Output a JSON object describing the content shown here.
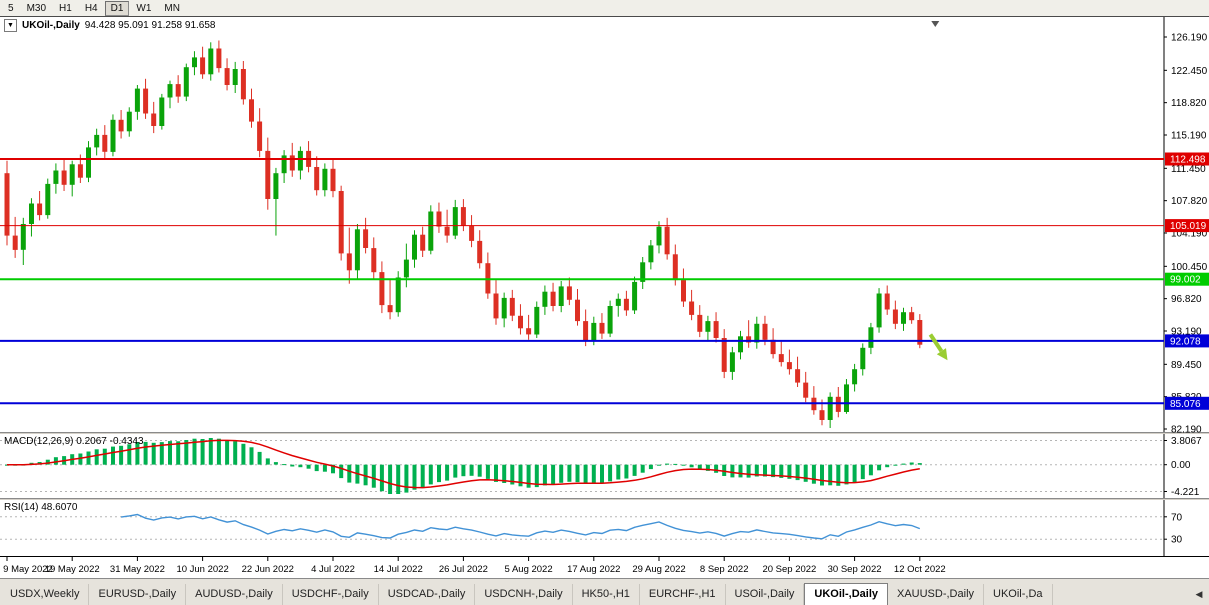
{
  "toolbar": {
    "periods": [
      "5",
      "M30",
      "H1",
      "H4",
      "D1",
      "W1",
      "MN"
    ],
    "active_period": "D1"
  },
  "chart": {
    "title": "UKOil-,Daily",
    "ohlc_text": "94.428 95.091 91.258 91.658",
    "dropdown_icon": "▼"
  },
  "chart_data": {
    "type": "candlestick",
    "symbol": "UKOil-",
    "timeframe": "Daily",
    "open": "94.428",
    "high": "95.091",
    "low": "91.258",
    "close": "91.658",
    "colors": {
      "up": "#0aa30a",
      "down": "#dd2f23"
    },
    "y_axis": {
      "max": 126.19,
      "min": 82.19,
      "labels": [
        "126.190",
        "122.450",
        "118.820",
        "115.190",
        "111.450",
        "107.820",
        "104.190",
        "100.450",
        "96.820",
        "93.190",
        "89.450",
        "85.820",
        "82.190"
      ]
    },
    "x_labels": [
      {
        "index": 0,
        "label": "9 May 2022"
      },
      {
        "index": 8,
        "label": "19 May 2022"
      },
      {
        "index": 16,
        "label": "31 May 2022"
      },
      {
        "index": 24,
        "label": "10 Jun 2022"
      },
      {
        "index": 32,
        "label": "22 Jun 2022"
      },
      {
        "index": 40,
        "label": "4 Jul 2022"
      },
      {
        "index": 48,
        "label": "14 Jul 2022"
      },
      {
        "index": 56,
        "label": "26 Jul 2022"
      },
      {
        "index": 64,
        "label": "5 Aug 2022"
      },
      {
        "index": 72,
        "label": "17 Aug 2022"
      },
      {
        "index": 80,
        "label": "29 Aug 2022"
      },
      {
        "index": 88,
        "label": "8 Sep 2022"
      },
      {
        "index": 96,
        "label": "20 Sep 2022"
      },
      {
        "index": 104,
        "label": "30 Sep 2022"
      },
      {
        "index": 112,
        "label": "12 Oct 2022"
      }
    ],
    "hlines": [
      {
        "price": 112.498,
        "label": "112.498",
        "color": "#df0000",
        "width": 2
      },
      {
        "price": 105.019,
        "label": "105.019",
        "color": "#df0000",
        "width": 1
      },
      {
        "price": 99.002,
        "label": "99.002",
        "color": "#00cc00",
        "width": 2
      },
      {
        "price": 92.078,
        "label": "92.078",
        "color": "#0000d8",
        "width": 2
      },
      {
        "price": 85.076,
        "label": "85.076",
        "color": "#0000d8",
        "width": 2
      }
    ],
    "shift_marker_index": 113.9,
    "arrow": {
      "from": {
        "index": 113.3,
        "price": 92.8
      },
      "to": {
        "index": 115.4,
        "price": 89.9
      },
      "color": "#9acd32"
    },
    "candles": [
      [
        110.9,
        112.3,
        102.8,
        103.9
      ],
      [
        103.9,
        106.0,
        101.4,
        102.3
      ],
      [
        102.3,
        105.9,
        100.6,
        105.2
      ],
      [
        105.2,
        108.1,
        103.8,
        107.5
      ],
      [
        107.5,
        108.9,
        105.6,
        106.2
      ],
      [
        106.2,
        110.3,
        105.8,
        109.7
      ],
      [
        109.7,
        112.0,
        108.6,
        111.2
      ],
      [
        111.2,
        112.4,
        108.9,
        109.6
      ],
      [
        109.6,
        112.3,
        108.3,
        111.9
      ],
      [
        111.9,
        113.0,
        109.8,
        110.4
      ],
      [
        110.4,
        114.5,
        109.9,
        113.8
      ],
      [
        113.8,
        115.9,
        112.9,
        115.2
      ],
      [
        115.2,
        116.3,
        112.5,
        113.3
      ],
      [
        113.3,
        117.5,
        112.8,
        116.9
      ],
      [
        116.9,
        118.0,
        114.8,
        115.6
      ],
      [
        115.6,
        118.3,
        115.0,
        117.8
      ],
      [
        117.8,
        120.8,
        116.9,
        120.4
      ],
      [
        120.4,
        121.5,
        117.0,
        117.6
      ],
      [
        117.6,
        118.9,
        115.4,
        116.2
      ],
      [
        116.2,
        119.8,
        115.8,
        119.4
      ],
      [
        119.4,
        121.3,
        118.2,
        120.9
      ],
      [
        120.9,
        121.9,
        118.8,
        119.5
      ],
      [
        119.5,
        123.2,
        119.0,
        122.8
      ],
      [
        122.8,
        124.6,
        121.9,
        123.9
      ],
      [
        123.9,
        125.1,
        121.5,
        122.0
      ],
      [
        122.0,
        125.6,
        121.3,
        124.9
      ],
      [
        124.9,
        125.8,
        122.2,
        122.7
      ],
      [
        122.7,
        123.8,
        120.2,
        120.8
      ],
      [
        120.8,
        123.4,
        119.9,
        122.6
      ],
      [
        122.6,
        123.5,
        118.6,
        119.2
      ],
      [
        119.2,
        120.4,
        116.0,
        116.7
      ],
      [
        116.7,
        118.2,
        112.7,
        113.4
      ],
      [
        113.4,
        114.9,
        106.8,
        108.0
      ],
      [
        108.0,
        111.5,
        103.9,
        110.9
      ],
      [
        110.9,
        113.5,
        109.8,
        112.9
      ],
      [
        112.9,
        114.3,
        110.5,
        111.2
      ],
      [
        111.2,
        113.9,
        110.2,
        113.4
      ],
      [
        113.4,
        114.5,
        111.0,
        111.6
      ],
      [
        111.6,
        112.8,
        108.4,
        109.0
      ],
      [
        109.0,
        112.0,
        108.3,
        111.4
      ],
      [
        111.4,
        112.6,
        108.2,
        108.9
      ],
      [
        108.9,
        109.5,
        101.1,
        101.9
      ],
      [
        101.9,
        104.8,
        98.5,
        100.0
      ],
      [
        100.0,
        105.2,
        99.0,
        104.6
      ],
      [
        104.6,
        105.9,
        101.9,
        102.5
      ],
      [
        102.5,
        103.7,
        99.0,
        99.8
      ],
      [
        99.8,
        101.0,
        95.2,
        96.1
      ],
      [
        96.1,
        99.0,
        94.5,
        95.3
      ],
      [
        95.3,
        99.9,
        94.8,
        99.2
      ],
      [
        99.2,
        103.0,
        98.1,
        101.2
      ],
      [
        101.2,
        104.5,
        100.3,
        104.0
      ],
      [
        104.0,
        104.9,
        101.5,
        102.2
      ],
      [
        102.2,
        107.3,
        101.8,
        106.6
      ],
      [
        106.6,
        107.6,
        104.2,
        104.9
      ],
      [
        104.9,
        106.8,
        103.1,
        103.9
      ],
      [
        103.9,
        107.9,
        103.5,
        107.1
      ],
      [
        107.1,
        108.0,
        104.4,
        105.0
      ],
      [
        105.0,
        106.2,
        102.6,
        103.3
      ],
      [
        103.3,
        104.5,
        100.2,
        100.8
      ],
      [
        100.8,
        102.0,
        96.8,
        97.4
      ],
      [
        97.4,
        98.9,
        93.9,
        94.6
      ],
      [
        94.6,
        97.5,
        93.6,
        96.9
      ],
      [
        96.9,
        97.8,
        94.3,
        94.9
      ],
      [
        94.9,
        96.2,
        92.8,
        93.5
      ],
      [
        93.5,
        95.0,
        92.2,
        92.8
      ],
      [
        92.8,
        96.5,
        92.4,
        95.9
      ],
      [
        95.9,
        98.3,
        95.0,
        97.6
      ],
      [
        97.6,
        98.6,
        95.4,
        96.0
      ],
      [
        96.0,
        98.8,
        95.3,
        98.2
      ],
      [
        98.2,
        99.2,
        96.1,
        96.7
      ],
      [
        96.7,
        97.9,
        93.8,
        94.3
      ],
      [
        94.3,
        95.6,
        91.5,
        92.1
      ],
      [
        92.1,
        94.8,
        91.6,
        94.1
      ],
      [
        94.1,
        95.2,
        92.3,
        92.9
      ],
      [
        92.9,
        96.6,
        92.5,
        96.0
      ],
      [
        96.0,
        97.4,
        94.8,
        96.8
      ],
      [
        96.8,
        97.7,
        94.9,
        95.5
      ],
      [
        95.5,
        99.3,
        95.1,
        98.7
      ],
      [
        98.7,
        101.5,
        97.9,
        100.9
      ],
      [
        100.9,
        103.4,
        100.1,
        102.8
      ],
      [
        102.8,
        105.5,
        101.9,
        104.9
      ],
      [
        104.9,
        105.9,
        101.2,
        101.8
      ],
      [
        101.8,
        102.9,
        98.3,
        98.9
      ],
      [
        98.9,
        100.2,
        95.9,
        96.5
      ],
      [
        96.5,
        97.8,
        94.4,
        95.0
      ],
      [
        95.0,
        96.1,
        92.5,
        93.1
      ],
      [
        93.1,
        94.9,
        92.0,
        94.3
      ],
      [
        94.3,
        95.3,
        91.9,
        92.4
      ],
      [
        92.4,
        93.4,
        87.9,
        88.6
      ],
      [
        88.6,
        91.4,
        87.7,
        90.8
      ],
      [
        90.8,
        93.2,
        90.0,
        92.6
      ],
      [
        92.6,
        94.4,
        91.3,
        91.9
      ],
      [
        91.9,
        94.8,
        91.2,
        94.0
      ],
      [
        94.0,
        94.9,
        91.6,
        92.2
      ],
      [
        92.2,
        93.5,
        90.1,
        90.6
      ],
      [
        90.6,
        92.0,
        89.2,
        89.7
      ],
      [
        89.7,
        91.1,
        88.3,
        88.9
      ],
      [
        88.9,
        90.3,
        86.9,
        87.4
      ],
      [
        87.4,
        88.6,
        85.2,
        85.7
      ],
      [
        85.7,
        87.0,
        83.8,
        84.3
      ],
      [
        84.3,
        85.5,
        82.6,
        83.2
      ],
      [
        83.2,
        86.3,
        82.3,
        85.8
      ],
      [
        85.8,
        86.9,
        83.5,
        84.1
      ],
      [
        84.1,
        87.8,
        83.9,
        87.2
      ],
      [
        87.2,
        89.5,
        86.4,
        88.9
      ],
      [
        88.9,
        91.8,
        88.2,
        91.3
      ],
      [
        91.3,
        94.1,
        90.6,
        93.6
      ],
      [
        93.6,
        98.0,
        93.0,
        97.4
      ],
      [
        97.4,
        98.3,
        95.0,
        95.6
      ],
      [
        95.6,
        96.6,
        93.4,
        94.0
      ],
      [
        94.0,
        95.8,
        93.2,
        95.3
      ],
      [
        95.3,
        95.9,
        94.0,
        94.4
      ],
      [
        94.428,
        95.091,
        91.258,
        91.658
      ]
    ]
  },
  "macd": {
    "label": "MACD(12,26,9) 0.2067 -0.4343",
    "scale_labels": [
      "3.8067",
      "0.00",
      "-4.221"
    ],
    "max": 3.8067,
    "min": -4.221,
    "histogram_color": "#00b050",
    "signal_color": "#e00000"
  },
  "rsi": {
    "label": "RSI(14) 48.6070",
    "levels": [
      "70",
      "30"
    ],
    "line_color": "#4292d6"
  },
  "tabs": {
    "items": [
      "USDX,Weekly",
      "EURUSD-,Daily",
      "AUDUSD-,Daily",
      "USDCHF-,Daily",
      "USDCAD-,Daily",
      "USDCNH-,Daily",
      "HK50-,H1",
      "EURCHF-,H1",
      "USOil-,Daily",
      "UKOil-,Daily",
      "XAUUSD-,Daily",
      "UKOil-,Da"
    ],
    "active": "UKOil-,Daily",
    "scroll_left": "◀"
  }
}
